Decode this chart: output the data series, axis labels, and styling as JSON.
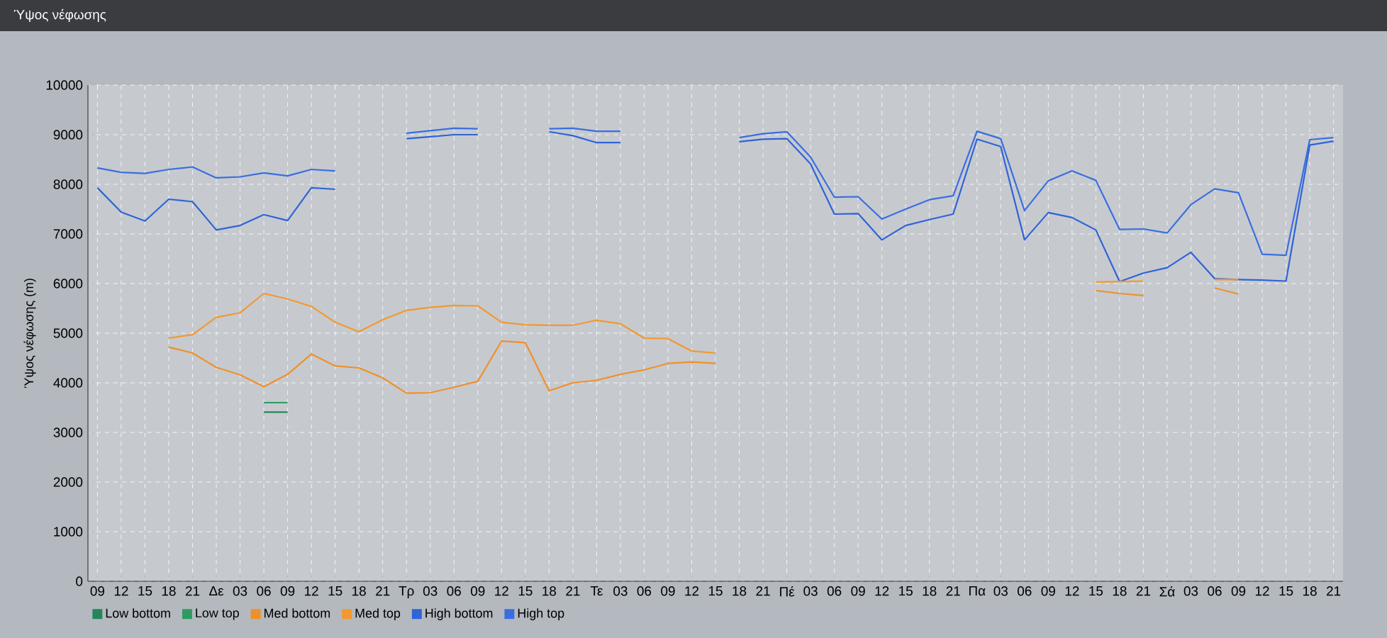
{
  "chart_data": {
    "type": "line",
    "title": "Ύψος νέφωσης",
    "ylabel": "Ύψος νέφωσης (m)",
    "categories": [
      "09",
      "12",
      "15",
      "18",
      "21",
      "Δε",
      "03",
      "06",
      "09",
      "12",
      "15",
      "18",
      "21",
      "Τρ",
      "03",
      "06",
      "09",
      "12",
      "15",
      "18",
      "21",
      "Τε",
      "03",
      "06",
      "09",
      "12",
      "15",
      "18",
      "21",
      "Πέ",
      "03",
      "06",
      "09",
      "12",
      "15",
      "18",
      "21",
      "Πα",
      "03",
      "06",
      "09",
      "12",
      "15",
      "18",
      "21",
      "Σά",
      "03",
      "06",
      "09",
      "12",
      "15",
      "18",
      "21"
    ],
    "ylim": [
      0,
      10000
    ],
    "yticks": [
      0,
      1000,
      2000,
      3000,
      4000,
      5000,
      6000,
      7000,
      8000,
      9000,
      10000
    ],
    "grid": true,
    "legend": "bottom",
    "series": [
      {
        "name": "Low bottom",
        "color": "#23875a",
        "values": [
          null,
          null,
          null,
          null,
          null,
          null,
          null,
          3410,
          3410,
          null,
          null,
          null,
          null,
          null,
          null,
          null,
          null,
          null,
          null,
          null,
          null,
          null,
          null,
          null,
          null,
          null,
          null,
          null,
          null,
          null,
          null,
          null,
          null,
          null,
          null,
          null,
          null,
          null,
          null,
          null,
          null,
          null,
          null,
          null,
          null,
          null,
          null,
          null,
          null,
          null,
          null,
          null,
          null
        ]
      },
      {
        "name": "Low top",
        "color": "#2f9a60",
        "values": [
          null,
          null,
          null,
          null,
          null,
          null,
          null,
          3600,
          3600,
          null,
          null,
          null,
          null,
          null,
          null,
          null,
          null,
          null,
          null,
          null,
          null,
          null,
          null,
          null,
          null,
          null,
          null,
          null,
          null,
          null,
          null,
          null,
          null,
          null,
          null,
          null,
          null,
          null,
          null,
          null,
          null,
          null,
          null,
          null,
          null,
          null,
          null,
          null,
          null,
          null,
          null,
          null,
          null
        ]
      },
      {
        "name": "Med bottom",
        "color": "#f0902a",
        "values": [
          null,
          null,
          null,
          4720,
          4600,
          4310,
          4160,
          3920,
          4170,
          4580,
          4340,
          4300,
          4100,
          3790,
          3800,
          3910,
          4030,
          4840,
          4810,
          3840,
          4000,
          4050,
          4170,
          4260,
          4390,
          4420,
          4390,
          null,
          null,
          null,
          null,
          null,
          null,
          null,
          null,
          null,
          null,
          null,
          null,
          null,
          null,
          null,
          5860,
          5800,
          5760,
          null,
          null,
          5910,
          5790,
          null,
          null,
          null,
          null
        ]
      },
      {
        "name": "Med top",
        "color": "#f3982e",
        "values": [
          null,
          null,
          null,
          4900,
          4970,
          5320,
          5410,
          5800,
          5690,
          5540,
          5220,
          5030,
          5270,
          5460,
          5520,
          5560,
          5550,
          5220,
          5170,
          5160,
          5160,
          5260,
          5190,
          4900,
          4890,
          4640,
          4600,
          null,
          null,
          null,
          null,
          null,
          null,
          null,
          null,
          null,
          null,
          null,
          null,
          null,
          null,
          null,
          6030,
          6040,
          6050,
          null,
          null,
          6080,
          6080,
          null,
          null,
          null,
          null
        ]
      },
      {
        "name": "High bottom",
        "color": "#2f63d8",
        "values": [
          7930,
          7440,
          7260,
          7700,
          7650,
          7080,
          7170,
          7390,
          7270,
          7930,
          7900,
          null,
          null,
          8920,
          8960,
          9000,
          9000,
          null,
          null,
          9060,
          8980,
          8840,
          8840,
          null,
          null,
          null,
          null,
          8860,
          8910,
          8920,
          8410,
          7400,
          7410,
          6880,
          7170,
          7290,
          7400,
          8910,
          8760,
          6880,
          7430,
          7330,
          7080,
          6040,
          6210,
          6320,
          6630,
          6100,
          6080,
          6070,
          6050,
          8790,
          8870
        ]
      },
      {
        "name": "High top",
        "color": "#3a6ee0",
        "values": [
          8330,
          8240,
          8220,
          8300,
          8350,
          8130,
          8150,
          8230,
          8170,
          8300,
          8270,
          null,
          null,
          9030,
          9080,
          9130,
          9120,
          null,
          null,
          9120,
          9130,
          9070,
          9070,
          null,
          null,
          null,
          null,
          8940,
          9020,
          9060,
          8550,
          7740,
          7750,
          7300,
          7500,
          7690,
          7770,
          9070,
          8920,
          7470,
          8070,
          8270,
          8080,
          7090,
          7100,
          7020,
          7590,
          7910,
          7830,
          6590,
          6570,
          8900,
          8940
        ]
      }
    ]
  }
}
